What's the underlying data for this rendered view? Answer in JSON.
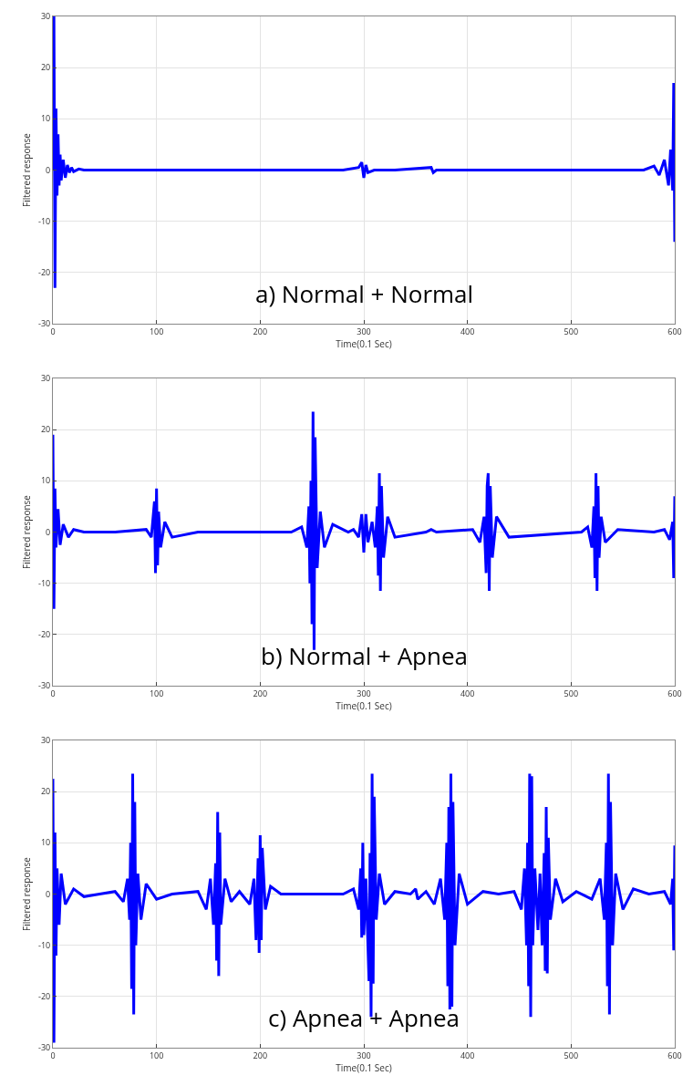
{
  "chart_data": [
    {
      "type": "line",
      "xlabel": "Time(0.1 Sec)",
      "ylabel": "Filtered response",
      "annotations": [
        "a) Normal + Normal"
      ],
      "xlim": [
        0,
        600
      ],
      "ylim": [
        -30,
        30
      ],
      "xticks": [
        0,
        100,
        200,
        300,
        400,
        500,
        600
      ],
      "yticks": [
        -30,
        -20,
        -10,
        0,
        10,
        20,
        30
      ],
      "grid": true,
      "series": [
        {
          "color": "#0000ff",
          "x": [
            0,
            1,
            2,
            3,
            4,
            5,
            6,
            7,
            8,
            10,
            12,
            14,
            16,
            18,
            20,
            25,
            30,
            60,
            100,
            200,
            280,
            295,
            298,
            300,
            302,
            304,
            310,
            330,
            365,
            367,
            370,
            450,
            570,
            580,
            585,
            590,
            594,
            596,
            598,
            599,
            600
          ],
          "values": [
            0,
            30,
            -23,
            12,
            -5,
            7,
            -3,
            3,
            -2,
            2,
            -1.5,
            1,
            -0.5,
            0.5,
            -0.3,
            0.2,
            0,
            0,
            0,
            0,
            0,
            0.5,
            1.5,
            -1.5,
            1,
            -0.5,
            0,
            0,
            0.5,
            -0.5,
            0,
            0,
            0,
            0.8,
            -1,
            2,
            -3,
            4,
            -4,
            17,
            -14
          ]
        }
      ]
    },
    {
      "type": "line",
      "xlabel": "Time(0.1 Sec)",
      "ylabel": "Filtered response",
      "annotations": [
        "b) Normal + Apnea"
      ],
      "xlim": [
        0,
        600
      ],
      "ylim": [
        -30,
        30
      ],
      "xticks": [
        0,
        100,
        200,
        300,
        400,
        500,
        600
      ],
      "yticks": [
        -30,
        -20,
        -10,
        0,
        10,
        20,
        30
      ],
      "grid": true,
      "series": [
        {
          "color": "#0000ff",
          "x": [
            0,
            1,
            2,
            3,
            5,
            7,
            10,
            15,
            20,
            30,
            60,
            90,
            95,
            98,
            99,
            100,
            101,
            102,
            104,
            108,
            115,
            140,
            230,
            240,
            245,
            247,
            248,
            249,
            250,
            251,
            252,
            253,
            255,
            258,
            262,
            270,
            285,
            290,
            295,
            298,
            300,
            302,
            304,
            308,
            311,
            313,
            314,
            315,
            316,
            317,
            319,
            323,
            330,
            360,
            365,
            370,
            405,
            412,
            416,
            418,
            419,
            420,
            421,
            422,
            424,
            428,
            440,
            510,
            516,
            520,
            522,
            523,
            524,
            525,
            526,
            527,
            529,
            533,
            545,
            580,
            590,
            595,
            598,
            599,
            600
          ],
          "values": [
            19,
            -15,
            8.5,
            -3,
            4.5,
            -2.5,
            1.5,
            -1,
            0.5,
            0,
            0,
            0.5,
            -1,
            6,
            -8,
            8.5,
            -6.5,
            4,
            -3,
            2,
            -1,
            0,
            0,
            1,
            -3,
            5,
            -10,
            10,
            -18,
            23.5,
            -23,
            18.5,
            -7,
            4,
            -3,
            1.5,
            0,
            0.5,
            -1,
            3.5,
            -4,
            3.5,
            -2,
            2,
            -3,
            5,
            -8.5,
            11.5,
            -11.5,
            9,
            -5,
            3,
            -1,
            0,
            0.5,
            0,
            0.5,
            -2,
            3,
            -8,
            9,
            11.5,
            -11.5,
            9,
            -5,
            3,
            -1,
            0,
            1,
            -3,
            5,
            -9,
            11.5,
            -11.5,
            9,
            -5,
            3,
            -2,
            0.5,
            0,
            0.5,
            -1.5,
            2,
            -9,
            7
          ]
        }
      ]
    },
    {
      "type": "line",
      "xlabel": "Time(0.1 Sec)",
      "ylabel": "Filtered response",
      "annotations": [
        "c) Apnea + Apnea"
      ],
      "xlim": [
        0,
        600
      ],
      "ylim": [
        -30,
        30
      ],
      "xticks": [
        0,
        100,
        200,
        300,
        400,
        500,
        600
      ],
      "yticks": [
        -30,
        -20,
        -10,
        0,
        10,
        20,
        30
      ],
      "grid": true,
      "series": [
        {
          "color": "#0000ff",
          "x": [
            0,
            1,
            2,
            3,
            4,
            6,
            8,
            12,
            20,
            30,
            45,
            60,
            68,
            72,
            74,
            75,
            76,
            77,
            78,
            79,
            80,
            82,
            85,
            90,
            100,
            115,
            140,
            148,
            152,
            155,
            157,
            158,
            159,
            160,
            161,
            162,
            166,
            172,
            180,
            190,
            194,
            196,
            198,
            199,
            200,
            201,
            202,
            205,
            210,
            220,
            280,
            290,
            295,
            297,
            298,
            299,
            300,
            302,
            305,
            306,
            307,
            308,
            309,
            310,
            312,
            315,
            320,
            330,
            345,
            350,
            352,
            360,
            368,
            374,
            378,
            380,
            381,
            382,
            383,
            384,
            385,
            386,
            388,
            392,
            400,
            415,
            430,
            445,
            452,
            455,
            457,
            458,
            459,
            460,
            461,
            462,
            463,
            465,
            468,
            470,
            472,
            474,
            475,
            476,
            477,
            478,
            480,
            485,
            492,
            505,
            520,
            528,
            532,
            534,
            535,
            536,
            537,
            538,
            540,
            543,
            550,
            560,
            575,
            590,
            596,
            598,
            599,
            600
          ],
          "values": [
            22.5,
            -29,
            12,
            -12,
            5,
            -6,
            4,
            -2,
            1,
            -0.5,
            0,
            0.5,
            -1.5,
            3,
            -5,
            10,
            -18.5,
            23.5,
            -23.5,
            18,
            -10,
            4,
            -5,
            2,
            -1,
            0,
            0.5,
            -3,
            3,
            -6,
            6,
            -13,
            16,
            -16,
            12,
            -6,
            3,
            -1.5,
            0.5,
            -2,
            3,
            -9,
            7,
            -11.5,
            11.5,
            -9,
            9,
            -3,
            1.5,
            0,
            0,
            1,
            -3,
            5,
            -8.5,
            10,
            -8,
            3,
            -17,
            8,
            -24,
            23.5,
            -17.5,
            19,
            -5,
            4,
            -2,
            0.5,
            0,
            1,
            -1,
            0.5,
            -2,
            3,
            -5,
            10,
            -18,
            17,
            -22.5,
            23.5,
            -22,
            18,
            -10,
            4,
            -2,
            0.5,
            0,
            0.5,
            -3,
            5,
            -10,
            10,
            -18,
            23.5,
            -24,
            23,
            -10,
            5,
            -7,
            4,
            -10,
            8,
            -15,
            17,
            -15.5,
            11,
            -5,
            3,
            -1.5,
            0.5,
            -1,
            3,
            -5,
            10,
            -18,
            23.5,
            -23.5,
            18,
            -10,
            4,
            -3,
            1,
            0,
            0.5,
            -2,
            3,
            -11,
            9.5
          ]
        }
      ]
    }
  ]
}
